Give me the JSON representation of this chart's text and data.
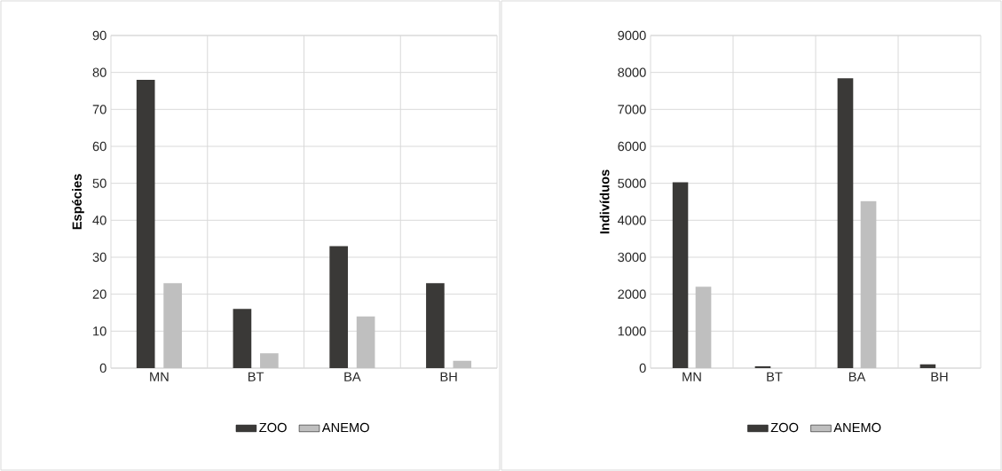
{
  "chart_data": [
    {
      "type": "bar",
      "ylabel": "Espécies",
      "categories": [
        "MN",
        "BT",
        "BA",
        "BH"
      ],
      "series": [
        {
          "name": "ZOO",
          "color": "#3a3937",
          "values": [
            78,
            16,
            33,
            23
          ]
        },
        {
          "name": "ANEMO",
          "color": "#bfbfbf",
          "values": [
            23,
            4,
            14,
            2
          ]
        }
      ],
      "ylim": [
        0,
        90
      ],
      "yticks": [
        0,
        10,
        20,
        30,
        40,
        50,
        60,
        70,
        80,
        90
      ],
      "grid": true,
      "legend": "bottom"
    },
    {
      "type": "bar",
      "ylabel": "Indivíduos",
      "categories": [
        "MN",
        "BT",
        "BA",
        "BH"
      ],
      "series": [
        {
          "name": "ZOO",
          "color": "#3a3937",
          "values": [
            5030,
            50,
            7840,
            100
          ]
        },
        {
          "name": "ANEMO",
          "color": "#bfbfbf",
          "values": [
            2200,
            0,
            4520,
            0
          ]
        }
      ],
      "ylim": [
        0,
        9000
      ],
      "yticks": [
        0,
        1000,
        2000,
        3000,
        4000,
        5000,
        6000,
        7000,
        8000,
        9000
      ],
      "grid": true,
      "legend": "bottom"
    }
  ]
}
